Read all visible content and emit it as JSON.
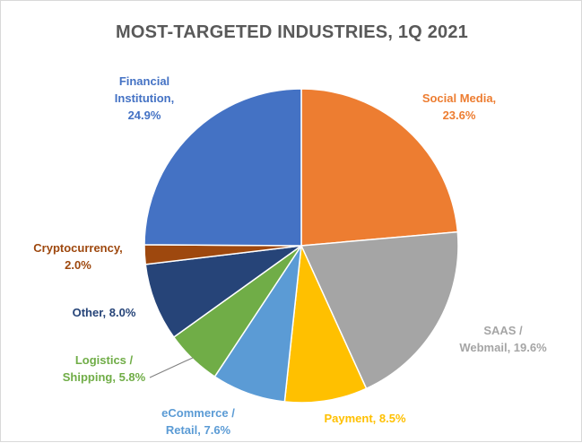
{
  "chart_data": {
    "type": "pie",
    "title": "MOST-TARGETED INDUSTRIES, 1Q 2021",
    "slices": [
      {
        "label_lines": [
          "Social Media,",
          "23.6%"
        ],
        "name": "Social Media",
        "value": 23.6,
        "color": "#ED7D31"
      },
      {
        "label_lines": [
          "SAAS /",
          "Webmail, 19.6%"
        ],
        "name": "SAAS / Webmail",
        "value": 19.6,
        "color": "#A5A5A5"
      },
      {
        "label_lines": [
          "Payment, 8.5%"
        ],
        "name": "Payment",
        "value": 8.5,
        "color": "#FFC000"
      },
      {
        "label_lines": [
          "eCommerce /",
          "Retail, 7.6%"
        ],
        "name": "eCommerce / Retail",
        "value": 7.6,
        "color": "#5B9BD5"
      },
      {
        "label_lines": [
          "Logistics /",
          "Shipping, 5.8%"
        ],
        "name": "Logistics / Shipping",
        "value": 5.8,
        "color": "#70AD47"
      },
      {
        "label_lines": [
          "Other, 8.0%"
        ],
        "name": "Other",
        "value": 8.0,
        "color": "#264478"
      },
      {
        "label_lines": [
          "Cryptocurrency,",
          "2.0%"
        ],
        "name": "Cryptocurrency",
        "value": 2.0,
        "color": "#9E480E"
      },
      {
        "label_lines": [
          "Financial",
          "Institution,",
          "24.9%"
        ],
        "name": "Financial Institution",
        "value": 24.9,
        "color": "#4472C4"
      }
    ],
    "legend": "none",
    "data_labels": "outside"
  }
}
